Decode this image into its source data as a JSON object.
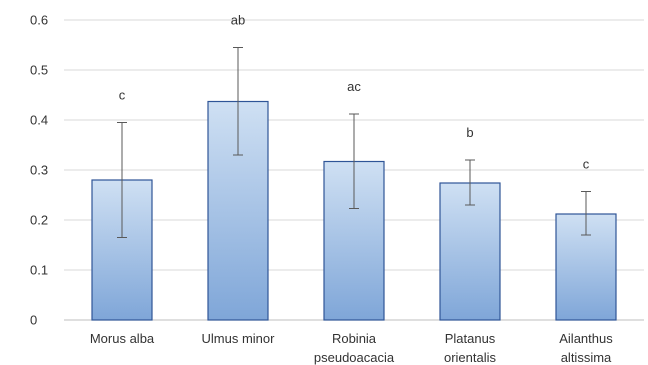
{
  "chart_data": {
    "type": "bar",
    "categories": [
      [
        "Morus alba"
      ],
      [
        "Ulmus minor"
      ],
      [
        "Robinia",
        "pseudoacacia"
      ],
      [
        "Platanus",
        "orientalis"
      ],
      [
        "Ailanthus",
        "altissima"
      ]
    ],
    "values": [
      0.28,
      0.437,
      0.317,
      0.274,
      0.212
    ],
    "error_low": [
      0.165,
      0.33,
      0.223,
      0.23,
      0.17
    ],
    "error_high": [
      0.395,
      0.545,
      0.412,
      0.32,
      0.257
    ],
    "significance_letters": [
      "c",
      "ab",
      "ac",
      "b",
      "c"
    ],
    "ylim": [
      0,
      0.6
    ],
    "yticks": [
      "0",
      "0.1",
      "0.2",
      "0.3",
      "0.4",
      "0.5",
      "0.6"
    ],
    "grid": true,
    "legend": "none",
    "colors": {
      "bar_top": "#cfe0f3",
      "bar_bottom": "#7fa6d8",
      "bar_border": "#2f5597"
    }
  }
}
